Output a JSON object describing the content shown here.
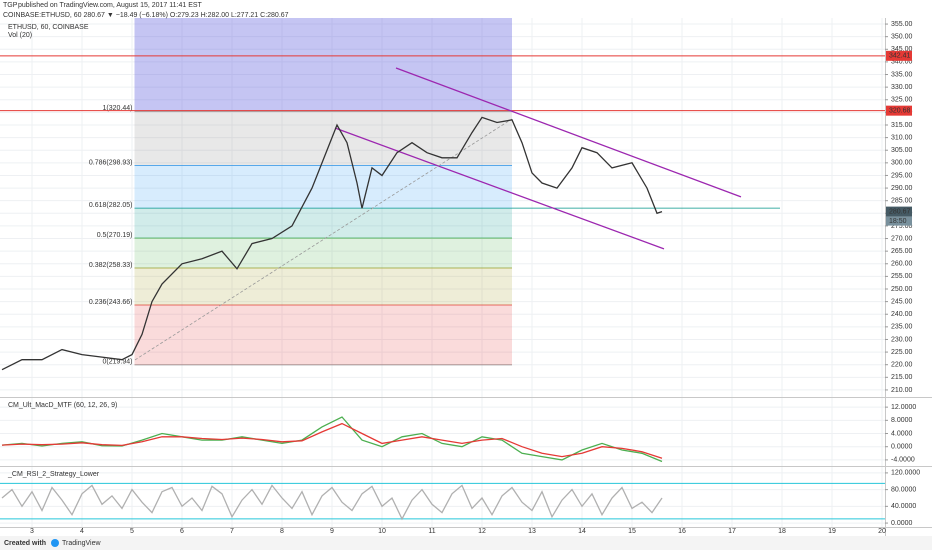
{
  "header": {
    "publisher": "TGP",
    "published": "published on TradingView.com, August 15, 2017 11:41 EST",
    "quote": "COINBASE:ETHUSD, 60  280.67 ▼ −18.49 (−6.18%) O:279.23 H:282.00 L:277.21 C:280.67"
  },
  "chart_data": [
    {
      "type": "line",
      "title": "ETHUSD, 60, COINBASE",
      "subtitle": "Vol (20)",
      "x": [
        2.4,
        2.8,
        3.2,
        3.6,
        4.0,
        4.4,
        4.8,
        5.0,
        5.2,
        5.4,
        5.6,
        6.0,
        6.4,
        6.8,
        7.1,
        7.4,
        7.8,
        8.2,
        8.6,
        8.9,
        9.1,
        9.3,
        9.5,
        9.6,
        9.8,
        10.0,
        10.3,
        10.6,
        10.9,
        11.2,
        11.5,
        11.8,
        12.0,
        12.3,
        12.6,
        12.8,
        13.0,
        13.2,
        13.5,
        13.8,
        14.0,
        14.3,
        14.6,
        15.0,
        15.3,
        15.5,
        15.6
      ],
      "series": [
        {
          "color": "#333333",
          "values": [
            218,
            222,
            222,
            226,
            224,
            223,
            222,
            224,
            232,
            245,
            252,
            260,
            262,
            265,
            258,
            268,
            270,
            275,
            290,
            305,
            315,
            308,
            292,
            282,
            298,
            295,
            304,
            308,
            304,
            302,
            302,
            312,
            318,
            316,
            317,
            308,
            296,
            292,
            290,
            298,
            306,
            304,
            298,
            300,
            290,
            280,
            280.67
          ]
        }
      ],
      "xlim": [
        2.36,
        20.06
      ],
      "ylim": [
        207.2,
        357.4
      ],
      "xticks": [
        3,
        4,
        5,
        6,
        7,
        8,
        9,
        10,
        11,
        12,
        13,
        14,
        15,
        16,
        17,
        18,
        19,
        20
      ],
      "yticks": [
        {
          "value": 210,
          "label": "210.00"
        },
        {
          "value": 215,
          "label": "215.00"
        },
        {
          "value": 220,
          "label": "220.00"
        },
        {
          "value": 225,
          "label": "225.00"
        },
        {
          "value": 230,
          "label": "230.00"
        },
        {
          "value": 235,
          "label": "235.00"
        },
        {
          "value": 240,
          "label": "240.00"
        },
        {
          "value": 245,
          "label": "245.00"
        },
        {
          "value": 250,
          "label": "250.00"
        },
        {
          "value": 255,
          "label": "255.00"
        },
        {
          "value": 260,
          "label": "260.00"
        },
        {
          "value": 265,
          "label": "265.00"
        },
        {
          "value": 270,
          "label": "270.00"
        },
        {
          "value": 275,
          "label": "275.00"
        },
        {
          "value": 280,
          "label": "280.00"
        },
        {
          "value": 285,
          "label": "285.00"
        },
        {
          "value": 290,
          "label": "290.00"
        },
        {
          "value": 295,
          "label": "295.00"
        },
        {
          "value": 300,
          "label": "300.00"
        },
        {
          "value": 305,
          "label": "305.00"
        },
        {
          "value": 310,
          "label": "310.00"
        },
        {
          "value": 315,
          "label": "315.00"
        },
        {
          "value": 320,
          "label": "320.00"
        },
        {
          "value": 325,
          "label": "325.00"
        },
        {
          "value": 330,
          "label": "330.00"
        },
        {
          "value": 335,
          "label": "335.00"
        },
        {
          "value": 340,
          "label": "340.00"
        },
        {
          "value": 345,
          "label": "345.00"
        },
        {
          "value": 350,
          "label": "350.00"
        },
        {
          "value": 355,
          "label": "355.00"
        }
      ],
      "grid": true,
      "highlight_x": [
        5.05,
        12.6
      ],
      "fib": {
        "x": [
          5.05,
          12.6
        ],
        "levels": [
          {
            "value": 219.94,
            "label": "0(219.94)",
            "color": "#808080"
          },
          {
            "value": 243.66,
            "label": "0.236(243.66)",
            "color": "#e53935"
          },
          {
            "value": 258.33,
            "label": "0.382(258.33)",
            "color": "#9e9d24"
          },
          {
            "value": 270.19,
            "label": "0.5(270.19)",
            "color": "#4caf50"
          },
          {
            "value": 282.05,
            "label": "0.618(282.05)",
            "color": "#009688"
          },
          {
            "value": 298.93,
            "label": "0.786(298.93)",
            "color": "#2196f3"
          },
          {
            "value": 320.44,
            "label": "1(320.44)",
            "color": "#808080"
          }
        ]
      },
      "price_lines": [
        {
          "value": 342.41,
          "label": "342.41",
          "color": "#e53935"
        },
        {
          "value": 320.68,
          "label": "320.68",
          "color": "#e53935"
        }
      ],
      "last_price": {
        "value": 280.67,
        "label": "280.67",
        "color": "#455a64"
      },
      "countdown": "18:50",
      "trend_lines": [
        {
          "x": [
            10.28,
            17.18
          ],
          "y": [
            337.6,
            286.5
          ],
          "color": "#9c27b0"
        },
        {
          "x": [
            9.06,
            15.64
          ],
          "y": [
            313.8,
            265.9
          ],
          "color": "#9c27b0"
        },
        {
          "x": [
            5.06,
            12.6
          ],
          "y": [
            221.9,
            317.4
          ],
          "color": "#999999",
          "dashed": true
        }
      ]
    },
    {
      "type": "line",
      "title": "CM_Ult_MacD_MTF (60, 12, 26, 9)",
      "x": [
        2.4,
        2.8,
        3.2,
        3.6,
        4.0,
        4.4,
        4.8,
        5.2,
        5.6,
        6.0,
        6.4,
        6.8,
        7.2,
        7.6,
        8.0,
        8.4,
        8.8,
        9.2,
        9.6,
        10.0,
        10.4,
        10.8,
        11.2,
        11.6,
        12.0,
        12.4,
        12.8,
        13.2,
        13.6,
        14.0,
        14.4,
        14.8,
        15.2,
        15.6
      ],
      "series": [
        {
          "color": "#4caf50",
          "values": [
            0.5,
            1,
            0.2,
            1,
            1.5,
            0.3,
            0.2,
            2,
            4,
            3,
            2,
            2,
            3,
            2,
            1,
            2,
            6,
            9,
            2,
            0,
            3,
            4,
            1,
            0,
            3,
            2,
            -2,
            -3,
            -4,
            -1,
            1,
            -1,
            -2,
            -4.5
          ]
        },
        {
          "color": "#e53935",
          "values": [
            0.5,
            0.8,
            0.6,
            0.8,
            1.2,
            0.6,
            0.4,
            1.5,
            3,
            3,
            2.5,
            2.2,
            2.6,
            2.2,
            1.5,
            1.8,
            4.5,
            7,
            4,
            1,
            2,
            3,
            2,
            1,
            2,
            2.5,
            0,
            -2,
            -3,
            -2,
            0,
            -0.5,
            -1.5,
            -3.5
          ]
        }
      ],
      "xlim": [
        2.36,
        20.06
      ],
      "ylim": [
        -5.85,
        14.77
      ],
      "yticks": [
        {
          "value": 12,
          "label": "12.0000"
        },
        {
          "value": 8,
          "label": "8.0000"
        },
        {
          "value": 4,
          "label": "4.0000"
        },
        {
          "value": 0,
          "label": "0.0000"
        },
        {
          "value": -4,
          "label": "-4.0000"
        }
      ],
      "grid": true
    },
    {
      "type": "line",
      "title": "_CM_RSI_2_Strategy_Lower",
      "x": [
        2.4,
        2.6,
        2.8,
        3.0,
        3.2,
        3.4,
        3.6,
        3.8,
        4.0,
        4.2,
        4.4,
        4.6,
        4.8,
        5.0,
        5.2,
        5.4,
        5.6,
        5.8,
        6.0,
        6.2,
        6.4,
        6.6,
        6.8,
        7.0,
        7.2,
        7.4,
        7.6,
        7.8,
        8.0,
        8.2,
        8.4,
        8.6,
        8.8,
        9.0,
        9.2,
        9.4,
        9.6,
        9.8,
        10.0,
        10.2,
        10.4,
        10.6,
        10.8,
        11.0,
        11.2,
        11.4,
        11.6,
        11.8,
        12.0,
        12.2,
        12.4,
        12.6,
        12.8,
        13.0,
        13.2,
        13.4,
        13.6,
        13.8,
        14.0,
        14.2,
        14.4,
        14.6,
        14.8,
        15.0,
        15.2,
        15.4,
        15.6
      ],
      "series": [
        {
          "color": "#b0b0b0",
          "values": [
            60,
            80,
            40,
            75,
            30,
            85,
            55,
            20,
            70,
            90,
            45,
            65,
            35,
            80,
            50,
            25,
            75,
            85,
            40,
            60,
            30,
            88,
            70,
            15,
            55,
            80,
            45,
            90,
            60,
            35,
            75,
            20,
            65,
            85,
            50,
            30,
            70,
            88,
            40,
            60,
            10,
            55,
            80,
            45,
            25,
            70,
            90,
            35,
            60,
            20,
            65,
            85,
            50,
            30,
            75,
            15,
            55,
            80,
            40,
            70,
            20,
            60,
            85,
            35,
            50,
            25,
            60
          ]
        }
      ],
      "levels": [
        95,
        10
      ],
      "level_color": "#26c6da",
      "xlim": [
        2.36,
        20.06
      ],
      "ylim": [
        -9.4,
        134.1
      ],
      "yticks": [
        {
          "value": 120,
          "label": "120.0000"
        },
        {
          "value": 80,
          "label": "80.0000"
        },
        {
          "value": 40,
          "label": "40.0000"
        },
        {
          "value": 0,
          "label": "0.0000"
        }
      ],
      "grid": true
    }
  ],
  "footer": {
    "created": "Created with",
    "brand": "TradingView"
  }
}
